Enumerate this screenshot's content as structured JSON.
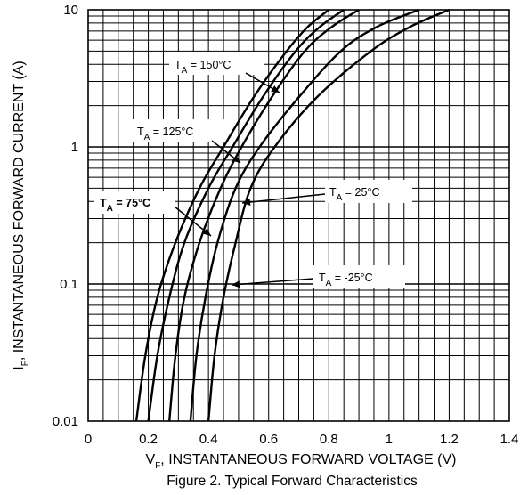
{
  "chart_data": {
    "type": "line",
    "title": "Figure 2. Typical Forward Characteristics",
    "xlabel": {
      "main": "V",
      "sub": "F",
      "rest": ", INSTANTANEOUS FORWARD VOLTAGE (V)"
    },
    "ylabel": {
      "main": "I",
      "sub": "F",
      "rest": ", INSTANTANEOUS FORWARD CURRENT (A)"
    },
    "x_scale": "linear",
    "y_scale": "log",
    "xlim": [
      0,
      1.4
    ],
    "ylim": [
      0.01,
      10
    ],
    "grid": true,
    "x_ticks": [
      "0",
      "0.2",
      "0.4",
      "0.6",
      "0.8",
      "1",
      "1.2",
      "1.4"
    ],
    "y_ticks": [
      "0.01",
      "0.1",
      "1",
      "10"
    ],
    "series": [
      {
        "annotation": {
          "base": "T",
          "sub": "A",
          "value": " = 150°C"
        },
        "points": [
          [
            0.16,
            0.01
          ],
          [
            0.19,
            0.03
          ],
          [
            0.23,
            0.08
          ],
          [
            0.29,
            0.2
          ],
          [
            0.37,
            0.5
          ],
          [
            0.45,
            1
          ],
          [
            0.55,
            2.3
          ],
          [
            0.66,
            5
          ],
          [
            0.73,
            7.5
          ],
          [
            0.8,
            10
          ]
        ]
      },
      {
        "annotation": {
          "base": "T",
          "sub": "A",
          "value": " = 125°C"
        },
        "points": [
          [
            0.2,
            0.01
          ],
          [
            0.23,
            0.03
          ],
          [
            0.27,
            0.08
          ],
          [
            0.32,
            0.2
          ],
          [
            0.4,
            0.5
          ],
          [
            0.48,
            1
          ],
          [
            0.58,
            2.3
          ],
          [
            0.69,
            5
          ],
          [
            0.77,
            7.5
          ],
          [
            0.85,
            10
          ]
        ]
      },
      {
        "annotation": {
          "base": "T",
          "sub": "A",
          "value": " = 75°C"
        },
        "points": [
          [
            0.27,
            0.01
          ],
          [
            0.29,
            0.03
          ],
          [
            0.32,
            0.08
          ],
          [
            0.37,
            0.2
          ],
          [
            0.44,
            0.5
          ],
          [
            0.51,
            1
          ],
          [
            0.61,
            2.3
          ],
          [
            0.72,
            5
          ],
          [
            0.81,
            7.5
          ],
          [
            0.9,
            10
          ]
        ]
      },
      {
        "annotation": {
          "base": "T",
          "sub": "A",
          "value": " = 25°C"
        },
        "points": [
          [
            0.34,
            0.01
          ],
          [
            0.36,
            0.03
          ],
          [
            0.39,
            0.08
          ],
          [
            0.43,
            0.2
          ],
          [
            0.49,
            0.5
          ],
          [
            0.57,
            1
          ],
          [
            0.7,
            2.3
          ],
          [
            0.84,
            5
          ],
          [
            0.96,
            7.5
          ],
          [
            1.1,
            10
          ]
        ]
      },
      {
        "annotation": {
          "base": "T",
          "sub": "A",
          "value": " = -25°C"
        },
        "points": [
          [
            0.4,
            0.01
          ],
          [
            0.42,
            0.03
          ],
          [
            0.45,
            0.08
          ],
          [
            0.49,
            0.2
          ],
          [
            0.54,
            0.5
          ],
          [
            0.62,
            1
          ],
          [
            0.76,
            2.3
          ],
          [
            0.94,
            5
          ],
          [
            1.07,
            7.5
          ],
          [
            1.2,
            10
          ]
        ]
      }
    ]
  }
}
